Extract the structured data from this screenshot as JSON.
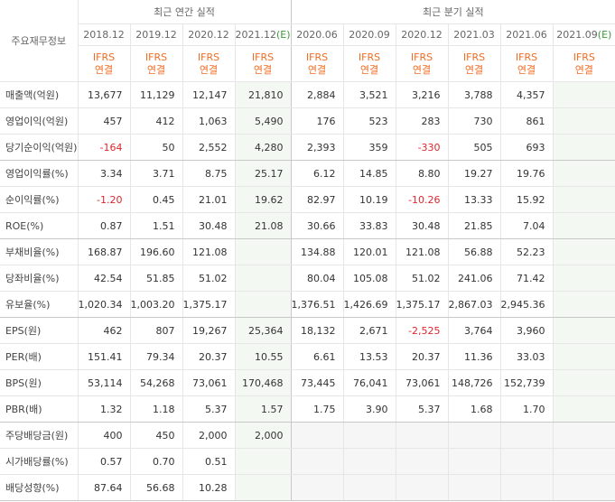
{
  "header": {
    "row_label": "주요재무정보",
    "annual": "최근 연간 실적",
    "quarterly": "최근 분기 실적"
  },
  "columns": [
    {
      "period": "2018.12",
      "basis": "IFRS",
      "scope": "연결"
    },
    {
      "period": "2019.12",
      "basis": "IFRS",
      "scope": "연결"
    },
    {
      "period": "2020.12",
      "basis": "IFRS",
      "scope": "연결"
    },
    {
      "period": "2021.12",
      "estimate": "(E)",
      "basis": "IFRS",
      "scope": "연결"
    },
    {
      "period": "2020.06",
      "basis": "IFRS",
      "scope": "연결"
    },
    {
      "period": "2020.09",
      "basis": "IFRS",
      "scope": "연결"
    },
    {
      "period": "2020.12",
      "basis": "IFRS",
      "scope": "연결"
    },
    {
      "period": "2021.03",
      "basis": "IFRS",
      "scope": "연결"
    },
    {
      "period": "2021.06",
      "basis": "IFRS",
      "scope": "연결"
    },
    {
      "period": "2021.09",
      "estimate": "(E)",
      "basis": "IFRS",
      "scope": "연결"
    }
  ],
  "groups": [
    [
      {
        "label": "매출액(억원)",
        "values": [
          "13,677",
          "11,129",
          "12,147",
          "21,810",
          "2,884",
          "3,521",
          "3,216",
          "3,788",
          "4,357",
          null
        ]
      },
      {
        "label": "영업이익(억원)",
        "values": [
          "457",
          "412",
          "1,063",
          "5,490",
          "176",
          "523",
          "283",
          "730",
          "861",
          null
        ]
      },
      {
        "label": "당기순이익(억원)",
        "values": [
          "-164",
          "50",
          "2,552",
          "4,280",
          "2,393",
          "359",
          "-330",
          "505",
          "693",
          null
        ]
      }
    ],
    [
      {
        "label": "영업이익률(%)",
        "values": [
          "3.34",
          "3.71",
          "8.75",
          "25.17",
          "6.12",
          "14.85",
          "8.80",
          "19.27",
          "19.76",
          null
        ]
      },
      {
        "label": "순이익률(%)",
        "values": [
          "-1.20",
          "0.45",
          "21.01",
          "19.62",
          "82.97",
          "10.19",
          "-10.26",
          "13.33",
          "15.92",
          null
        ]
      },
      {
        "label": "ROE(%)",
        "values": [
          "0.87",
          "1.51",
          "30.48",
          "21.08",
          "30.66",
          "33.83",
          "30.48",
          "21.85",
          "7.04",
          null
        ]
      }
    ],
    [
      {
        "label": "부채비율(%)",
        "values": [
          "168.87",
          "196.60",
          "121.08",
          null,
          "134.88",
          "120.01",
          "121.08",
          "56.88",
          "52.23",
          null
        ]
      },
      {
        "label": "당좌비율(%)",
        "values": [
          "42.54",
          "51.85",
          "51.02",
          null,
          "80.04",
          "105.08",
          "51.02",
          "241.06",
          "71.42",
          null
        ]
      },
      {
        "label": "유보율(%)",
        "values": [
          "1,020.34",
          "1,003.20",
          "1,375.17",
          null,
          "1,376.51",
          "1,426.69",
          "1,375.17",
          "2,867.03",
          "2,945.36",
          null
        ]
      }
    ],
    [
      {
        "label": "EPS(원)",
        "values": [
          "462",
          "807",
          "19,267",
          "25,364",
          "18,132",
          "2,671",
          "-2,525",
          "3,764",
          "3,960",
          null
        ]
      },
      {
        "label": "PER(배)",
        "values": [
          "151.41",
          "79.34",
          "20.37",
          "10.55",
          "6.61",
          "13.53",
          "20.37",
          "11.36",
          "33.03",
          null
        ]
      },
      {
        "label": "BPS(원)",
        "values": [
          "53,114",
          "54,268",
          "73,061",
          "170,468",
          "73,445",
          "76,041",
          "73,061",
          "148,726",
          "152,739",
          null
        ]
      },
      {
        "label": "PBR(배)",
        "values": [
          "1.32",
          "1.18",
          "5.37",
          "1.57",
          "1.75",
          "3.90",
          "5.37",
          "1.68",
          "1.70",
          null
        ]
      }
    ],
    [
      {
        "label": "주당배당금(원)",
        "values": [
          "400",
          "450",
          "2,000",
          "2,000",
          null,
          null,
          null,
          null,
          null,
          null
        ]
      },
      {
        "label": "시가배당률(%)",
        "values": [
          "0.57",
          "0.70",
          "0.51",
          null,
          null,
          null,
          null,
          null,
          null,
          null
        ]
      },
      {
        "label": "배당성향(%)",
        "values": [
          "87.64",
          "56.68",
          "10.28",
          null,
          null,
          null,
          null,
          null,
          null,
          null
        ]
      }
    ]
  ]
}
